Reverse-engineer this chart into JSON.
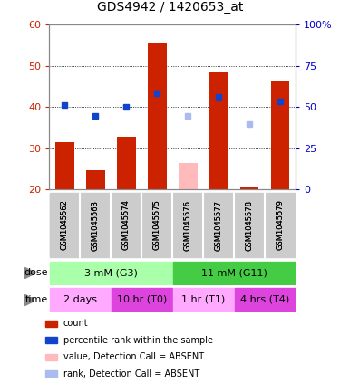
{
  "title": "GDS4942 / 1420653_at",
  "samples": [
    "GSM1045562",
    "GSM1045563",
    "GSM1045574",
    "GSM1045575",
    "GSM1045576",
    "GSM1045577",
    "GSM1045578",
    "GSM1045579"
  ],
  "bar_values": [
    31.5,
    24.8,
    32.8,
    55.5,
    null,
    48.5,
    20.5,
    46.5
  ],
  "bar_colors": [
    "#cc2200",
    "#cc2200",
    "#cc2200",
    "#cc2200",
    null,
    "#cc2200",
    "#cc2200",
    "#cc2200"
  ],
  "absent_bar_values": [
    null,
    null,
    null,
    null,
    26.5,
    null,
    null,
    null
  ],
  "absent_bar_color": "#ffbbbb",
  "blue_square_values": [
    40.5,
    38.0,
    40.0,
    43.5,
    null,
    42.5,
    null,
    41.5
  ],
  "absent_blue_values": [
    null,
    null,
    null,
    null,
    38.0,
    null,
    36.0,
    null
  ],
  "blue_sq_color": "#1144cc",
  "absent_blue_color": "#aabbee",
  "ylim_left": [
    20,
    60
  ],
  "ylim_right": [
    0,
    100
  ],
  "yticks_left": [
    20,
    30,
    40,
    50,
    60
  ],
  "yticks_right": [
    0,
    25,
    50,
    75,
    100
  ],
  "yticklabels_right": [
    "0",
    "25",
    "50",
    "75",
    "100%"
  ],
  "left_axis_color": "#cc2200",
  "right_axis_color": "#0000cc",
  "dose_labels": [
    {
      "label": "3 mM (G3)",
      "start": 0,
      "end": 3,
      "color": "#aaffaa"
    },
    {
      "label": "11 mM (G11)",
      "start": 4,
      "end": 7,
      "color": "#44cc44"
    }
  ],
  "time_labels": [
    {
      "label": "2 days",
      "start": 0,
      "end": 1,
      "color": "#ffaaff"
    },
    {
      "label": "10 hr (T0)",
      "start": 2,
      "end": 3,
      "color": "#dd44dd"
    },
    {
      "label": "1 hr (T1)",
      "start": 4,
      "end": 5,
      "color": "#ffaaff"
    },
    {
      "label": "4 hrs (T4)",
      "start": 6,
      "end": 7,
      "color": "#dd44dd"
    }
  ],
  "legend_items": [
    {
      "label": "count",
      "color": "#cc2200"
    },
    {
      "label": "percentile rank within the sample",
      "color": "#1144cc"
    },
    {
      "label": "value, Detection Call = ABSENT",
      "color": "#ffbbbb"
    },
    {
      "label": "rank, Detection Call = ABSENT",
      "color": "#aabbee"
    }
  ],
  "grid_style": "dotted",
  "bg_color": "#ffffff",
  "bar_width": 0.6,
  "sq_size": 5
}
